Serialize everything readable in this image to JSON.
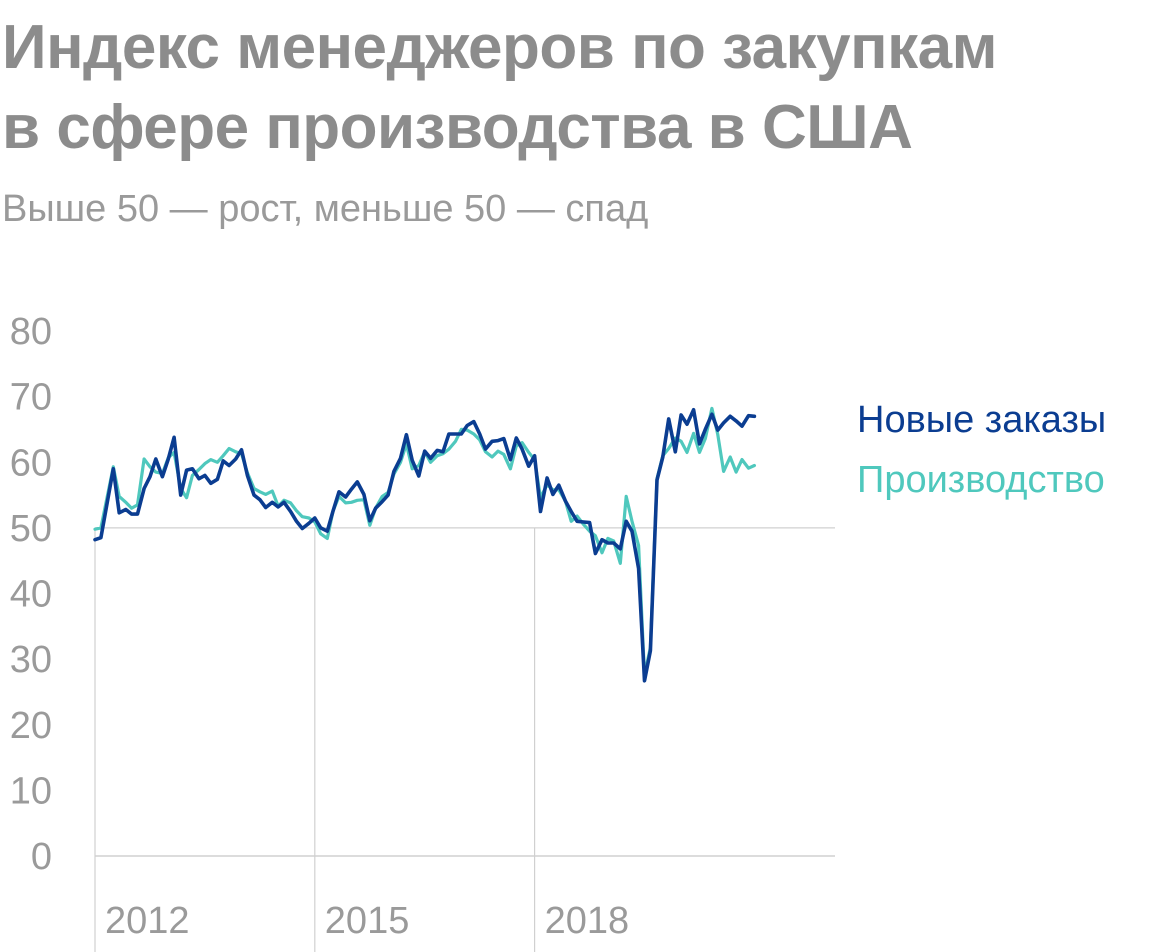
{
  "chart_data": {
    "type": "line",
    "title_line1": "Индекс менеджеров по закупкам",
    "title_line2": "в сфере производства в США",
    "subtitle": "Выше 50 — рост, меньше 50 — спад",
    "ylim": [
      0,
      80
    ],
    "yticks": [
      "0",
      "10",
      "20",
      "30",
      "40",
      "50",
      "60",
      "70",
      "80"
    ],
    "xlim": [
      2011.0,
      2021.1
    ],
    "xticks": [
      {
        "label": "2012",
        "x": 2011.0
      },
      {
        "label": "2015",
        "x": 2014.0
      },
      {
        "label": "2018",
        "x": 2017.0
      }
    ],
    "reference_line": 50,
    "legend_placement": "right",
    "series": [
      {
        "name": "Новые заказы",
        "color": "#0b3d91",
        "values": [
          [
            2011.0,
            48.2
          ],
          [
            2011.08,
            48.5
          ],
          [
            2011.25,
            59.0
          ],
          [
            2011.33,
            52.3
          ],
          [
            2011.42,
            52.8
          ],
          [
            2011.5,
            52.1
          ],
          [
            2011.58,
            52.1
          ],
          [
            2011.67,
            56.0
          ],
          [
            2011.75,
            57.8
          ],
          [
            2011.83,
            60.5
          ],
          [
            2011.92,
            57.8
          ],
          [
            2012.0,
            60.5
          ],
          [
            2012.08,
            63.8
          ],
          [
            2012.17,
            55.0
          ],
          [
            2012.25,
            58.8
          ],
          [
            2012.33,
            59.0
          ],
          [
            2012.42,
            57.5
          ],
          [
            2012.5,
            58.0
          ],
          [
            2012.58,
            56.8
          ],
          [
            2012.67,
            57.4
          ],
          [
            2012.75,
            60.2
          ],
          [
            2012.83,
            59.5
          ],
          [
            2012.92,
            60.5
          ],
          [
            2013.0,
            61.9
          ],
          [
            2013.08,
            58.0
          ],
          [
            2013.17,
            55.0
          ],
          [
            2013.25,
            54.3
          ],
          [
            2013.33,
            53.1
          ],
          [
            2013.42,
            53.9
          ],
          [
            2013.5,
            53.2
          ],
          [
            2013.58,
            53.9
          ],
          [
            2013.67,
            52.5
          ],
          [
            2013.75,
            51.0
          ],
          [
            2013.83,
            49.9
          ],
          [
            2013.92,
            50.7
          ],
          [
            2014.0,
            51.5
          ],
          [
            2014.08,
            50.0
          ],
          [
            2014.17,
            49.5
          ],
          [
            2014.25,
            52.6
          ],
          [
            2014.33,
            55.5
          ],
          [
            2014.42,
            54.7
          ],
          [
            2014.5,
            55.9
          ],
          [
            2014.58,
            57.0
          ],
          [
            2014.67,
            55.1
          ],
          [
            2014.75,
            51.1
          ],
          [
            2014.83,
            53.0
          ],
          [
            2014.92,
            54.0
          ],
          [
            2015.0,
            55.0
          ],
          [
            2015.08,
            58.6
          ],
          [
            2015.17,
            60.6
          ],
          [
            2015.25,
            64.2
          ],
          [
            2015.33,
            60.3
          ],
          [
            2015.42,
            57.9
          ],
          [
            2015.5,
            61.7
          ],
          [
            2015.58,
            60.6
          ],
          [
            2015.67,
            61.8
          ],
          [
            2015.75,
            61.6
          ],
          [
            2015.83,
            64.3
          ],
          [
            2015.92,
            64.3
          ],
          [
            2016.0,
            64.3
          ],
          [
            2016.08,
            65.6
          ],
          [
            2016.17,
            66.2
          ],
          [
            2016.25,
            64.3
          ],
          [
            2016.33,
            62.0
          ],
          [
            2016.42,
            63.2
          ],
          [
            2016.5,
            63.3
          ],
          [
            2016.58,
            63.6
          ],
          [
            2016.67,
            60.4
          ],
          [
            2016.75,
            63.7
          ],
          [
            2016.83,
            62.0
          ],
          [
            2016.92,
            59.4
          ],
          [
            2017.0,
            61.0
          ],
          [
            2017.08,
            52.5
          ],
          [
            2017.17,
            57.6
          ],
          [
            2017.25,
            55.1
          ],
          [
            2017.33,
            56.5
          ],
          [
            2017.42,
            54.1
          ],
          [
            2017.5,
            52.5
          ],
          [
            2017.58,
            51.0
          ],
          [
            2017.67,
            50.9
          ],
          [
            2017.75,
            50.8
          ],
          [
            2017.83,
            46.1
          ],
          [
            2017.92,
            48.2
          ],
          [
            2018.0,
            47.7
          ],
          [
            2018.08,
            47.7
          ],
          [
            2018.17,
            46.8
          ],
          [
            2018.25,
            51.0
          ],
          [
            2018.33,
            49.5
          ],
          [
            2018.42,
            43.8
          ],
          [
            2018.5,
            26.7
          ],
          [
            2018.58,
            31.3
          ],
          [
            2018.67,
            57.3
          ],
          [
            2018.75,
            60.8
          ],
          [
            2018.83,
            66.6
          ],
          [
            2018.92,
            61.6
          ],
          [
            2019.0,
            67.2
          ],
          [
            2019.08,
            65.8
          ],
          [
            2019.17,
            68.0
          ],
          [
            2019.25,
            62.8
          ],
          [
            2019.33,
            65.0
          ],
          [
            2019.42,
            67.3
          ],
          [
            2019.5,
            64.9
          ],
          [
            2019.58,
            66.0
          ],
          [
            2019.67,
            67.0
          ],
          [
            2019.75,
            66.3
          ],
          [
            2019.83,
            65.5
          ],
          [
            2019.92,
            67.1
          ],
          [
            2020.0,
            67.0
          ]
        ]
      },
      {
        "name": "Производство",
        "color": "#4fc8bd",
        "values": [
          [
            2011.0,
            49.8
          ],
          [
            2011.08,
            50.0
          ],
          [
            2011.25,
            59.3
          ],
          [
            2011.33,
            54.8
          ],
          [
            2011.42,
            53.9
          ],
          [
            2011.5,
            53.0
          ],
          [
            2011.58,
            53.5
          ],
          [
            2011.67,
            60.5
          ],
          [
            2011.75,
            59.3
          ],
          [
            2011.83,
            58.5
          ],
          [
            2011.92,
            58.3
          ],
          [
            2012.0,
            60.7
          ],
          [
            2012.08,
            61.5
          ],
          [
            2012.17,
            56.0
          ],
          [
            2012.25,
            54.6
          ],
          [
            2012.33,
            58.0
          ],
          [
            2012.42,
            58.9
          ],
          [
            2012.5,
            59.8
          ],
          [
            2012.58,
            60.4
          ],
          [
            2012.67,
            60.0
          ],
          [
            2012.75,
            61.0
          ],
          [
            2012.83,
            62.1
          ],
          [
            2012.92,
            61.6
          ],
          [
            2013.0,
            61.3
          ],
          [
            2013.08,
            58.4
          ],
          [
            2013.17,
            56.0
          ],
          [
            2013.25,
            55.5
          ],
          [
            2013.33,
            55.1
          ],
          [
            2013.42,
            55.6
          ],
          [
            2013.5,
            53.3
          ],
          [
            2013.58,
            54.2
          ],
          [
            2013.67,
            53.8
          ],
          [
            2013.75,
            52.6
          ],
          [
            2013.83,
            51.7
          ],
          [
            2013.92,
            51.5
          ],
          [
            2014.0,
            50.9
          ],
          [
            2014.08,
            49.1
          ],
          [
            2014.17,
            48.4
          ],
          [
            2014.25,
            52.6
          ],
          [
            2014.33,
            54.8
          ],
          [
            2014.42,
            53.8
          ],
          [
            2014.5,
            53.9
          ],
          [
            2014.58,
            54.2
          ],
          [
            2014.67,
            54.3
          ],
          [
            2014.75,
            50.4
          ],
          [
            2014.83,
            53.0
          ],
          [
            2014.92,
            54.8
          ],
          [
            2015.0,
            55.4
          ],
          [
            2015.08,
            58.2
          ],
          [
            2015.17,
            60.0
          ],
          [
            2015.25,
            62.8
          ],
          [
            2015.33,
            59.0
          ],
          [
            2015.42,
            59.5
          ],
          [
            2015.5,
            61.6
          ],
          [
            2015.58,
            60.0
          ],
          [
            2015.67,
            61.0
          ],
          [
            2015.75,
            61.3
          ],
          [
            2015.83,
            62.0
          ],
          [
            2015.92,
            63.2
          ],
          [
            2016.0,
            65.0
          ],
          [
            2016.08,
            64.9
          ],
          [
            2016.17,
            64.3
          ],
          [
            2016.25,
            63.4
          ],
          [
            2016.33,
            61.6
          ],
          [
            2016.42,
            60.8
          ],
          [
            2016.5,
            61.7
          ],
          [
            2016.58,
            61.2
          ],
          [
            2016.67,
            59.0
          ],
          [
            2016.75,
            62.5
          ],
          [
            2016.83,
            63.0
          ],
          [
            2016.92,
            61.5
          ],
          [
            2017.0,
            60.4
          ],
          [
            2017.08,
            54.6
          ],
          [
            2017.17,
            56.6
          ],
          [
            2017.25,
            55.8
          ],
          [
            2017.33,
            55.8
          ],
          [
            2017.42,
            54.1
          ],
          [
            2017.5,
            51.0
          ],
          [
            2017.58,
            51.8
          ],
          [
            2017.67,
            50.5
          ],
          [
            2017.75,
            49.5
          ],
          [
            2017.83,
            48.8
          ],
          [
            2017.92,
            46.2
          ],
          [
            2018.0,
            48.4
          ],
          [
            2018.08,
            48.0
          ],
          [
            2018.17,
            44.6
          ],
          [
            2018.25,
            54.8
          ],
          [
            2018.33,
            51.0
          ],
          [
            2018.42,
            47.3
          ],
          [
            2018.5,
            27.5
          ],
          [
            2018.58,
            31.8
          ],
          [
            2018.67,
            57.5
          ],
          [
            2018.75,
            61.0
          ],
          [
            2018.83,
            62.1
          ],
          [
            2018.92,
            63.7
          ],
          [
            2019.0,
            63.2
          ],
          [
            2019.08,
            61.5
          ],
          [
            2019.17,
            64.4
          ],
          [
            2019.25,
            61.5
          ],
          [
            2019.33,
            63.6
          ],
          [
            2019.42,
            68.2
          ],
          [
            2019.5,
            64.2
          ],
          [
            2019.58,
            58.6
          ],
          [
            2019.67,
            60.8
          ],
          [
            2019.75,
            58.5
          ],
          [
            2019.83,
            60.4
          ],
          [
            2019.92,
            59.1
          ],
          [
            2020.0,
            59.5
          ]
        ]
      }
    ]
  }
}
